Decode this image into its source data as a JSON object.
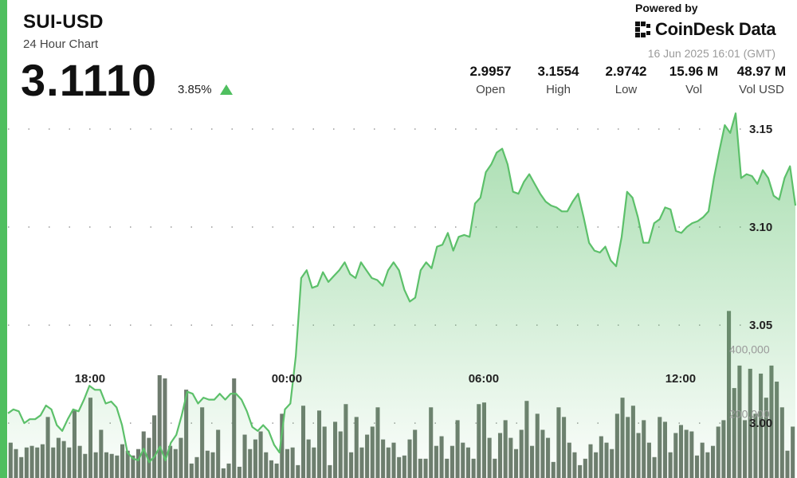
{
  "header": {
    "pair": "SUI-USD",
    "subtitle": "24 Hour Chart",
    "price": "3.1110",
    "change": "3.85%",
    "powered_by": "Powered by",
    "brand": "CoinDesk Data",
    "timestamp": "16 Jun 2025 16:01 (GMT)"
  },
  "stats": [
    {
      "value": "2.9957",
      "label": "Open"
    },
    {
      "value": "3.1554",
      "label": "High"
    },
    {
      "value": "2.9742",
      "label": "Low"
    },
    {
      "value": "15.96 M",
      "label": "Vol"
    },
    {
      "value": "48.97 M",
      "label": "Vol USD"
    }
  ],
  "colors": {
    "accent": "#4fbf5f",
    "line": "#5cc06a",
    "volume": "#6e7b6e",
    "change_arrow": "#4fbf5f"
  },
  "icons": {
    "trend": "up-triangle-icon",
    "brand": "coindesk-logo-icon"
  },
  "chart_data": {
    "type": "area",
    "x_ticks": [
      {
        "label": "18:00",
        "hour": 2.5
      },
      {
        "label": "00:00",
        "hour": 8.5
      },
      {
        "label": "06:00",
        "hour": 14.5
      },
      {
        "label": "12:00",
        "hour": 20.5
      }
    ],
    "price_axis": {
      "range": [
        2.972,
        3.163
      ],
      "ticks": [
        3.0,
        3.05,
        3.1,
        3.15
      ]
    },
    "volume_axis": {
      "range": [
        0,
        620000
      ],
      "ticks": [
        "400,000",
        "200,000"
      ],
      "tick_values": [
        400000,
        200000
      ]
    },
    "price_series": [
      3.005,
      3.007,
      3.006,
      3.0,
      3.002,
      3.002,
      3.004,
      3.009,
      3.007,
      2.999,
      2.996,
      3.002,
      3.007,
      3.006,
      3.012,
      3.019,
      3.017,
      3.017,
      3.01,
      3.011,
      3.008,
      2.999,
      2.985,
      2.982,
      2.981,
      2.987,
      2.98,
      2.983,
      2.988,
      2.981,
      2.99,
      2.994,
      3.004,
      3.016,
      3.015,
      3.01,
      3.013,
      3.012,
      3.012,
      3.015,
      3.012,
      3.015,
      3.015,
      3.012,
      3.006,
      2.998,
      2.996,
      2.999,
      2.996,
      2.989,
      2.985,
      3.007,
      3.01,
      3.034,
      3.074,
      3.078,
      3.069,
      3.07,
      3.077,
      3.072,
      3.075,
      3.078,
      3.082,
      3.076,
      3.074,
      3.082,
      3.078,
      3.074,
      3.073,
      3.07,
      3.078,
      3.082,
      3.078,
      3.068,
      3.062,
      3.064,
      3.078,
      3.082,
      3.079,
      3.09,
      3.091,
      3.097,
      3.088,
      3.095,
      3.096,
      3.095,
      3.112,
      3.115,
      3.128,
      3.132,
      3.138,
      3.14,
      3.132,
      3.118,
      3.117,
      3.123,
      3.127,
      3.122,
      3.117,
      3.113,
      3.111,
      3.11,
      3.108,
      3.108,
      3.113,
      3.117,
      3.105,
      3.092,
      3.088,
      3.087,
      3.09,
      3.083,
      3.08,
      3.095,
      3.118,
      3.115,
      3.105,
      3.092,
      3.092,
      3.102,
      3.104,
      3.11,
      3.109,
      3.098,
      3.097,
      3.1,
      3.102,
      3.103,
      3.105,
      3.108,
      3.125,
      3.139,
      3.152,
      3.148,
      3.158,
      3.125,
      3.127,
      3.126,
      3.122,
      3.129,
      3.125,
      3.116,
      3.114,
      3.125,
      3.131,
      3.111
    ],
    "volume_series": [
      110000,
      90000,
      65000,
      95000,
      100000,
      95000,
      105000,
      190000,
      95000,
      125000,
      115000,
      95000,
      210000,
      100000,
      75000,
      250000,
      80000,
      150000,
      80000,
      75000,
      70000,
      105000,
      85000,
      70000,
      90000,
      145000,
      125000,
      195000,
      320000,
      310000,
      100000,
      90000,
      125000,
      275000,
      45000,
      65000,
      220000,
      85000,
      80000,
      150000,
      30000,
      45000,
      310000,
      35000,
      135000,
      90000,
      120000,
      145000,
      80000,
      55000,
      45000,
      200000,
      90000,
      95000,
      40000,
      225000,
      120000,
      95000,
      210000,
      160000,
      40000,
      175000,
      145000,
      230000,
      80000,
      190000,
      95000,
      135000,
      160000,
      220000,
      120000,
      95000,
      110000,
      65000,
      70000,
      120000,
      150000,
      60000,
      60000,
      220000,
      100000,
      130000,
      60000,
      100000,
      180000,
      110000,
      95000,
      60000,
      230000,
      235000,
      125000,
      60000,
      140000,
      180000,
      125000,
      90000,
      150000,
      240000,
      100000,
      200000,
      150000,
      125000,
      50000,
      220000,
      190000,
      110000,
      80000,
      40000
    ],
    "volume_series_tail": [
      60000,
      105000,
      80000,
      130000,
      110000,
      90000,
      200000,
      250000,
      190000,
      225000,
      140000,
      180000,
      110000,
      65000,
      190000,
      175000,
      80000,
      140000,
      165000,
      150000,
      145000,
      70000,
      110000,
      80000,
      100000,
      160000,
      180000,
      520000,
      280000,
      350000,
      180000,
      340000,
      200000,
      325000,
      250000,
      350000,
      300000,
      220000,
      85000,
      160000
    ]
  }
}
